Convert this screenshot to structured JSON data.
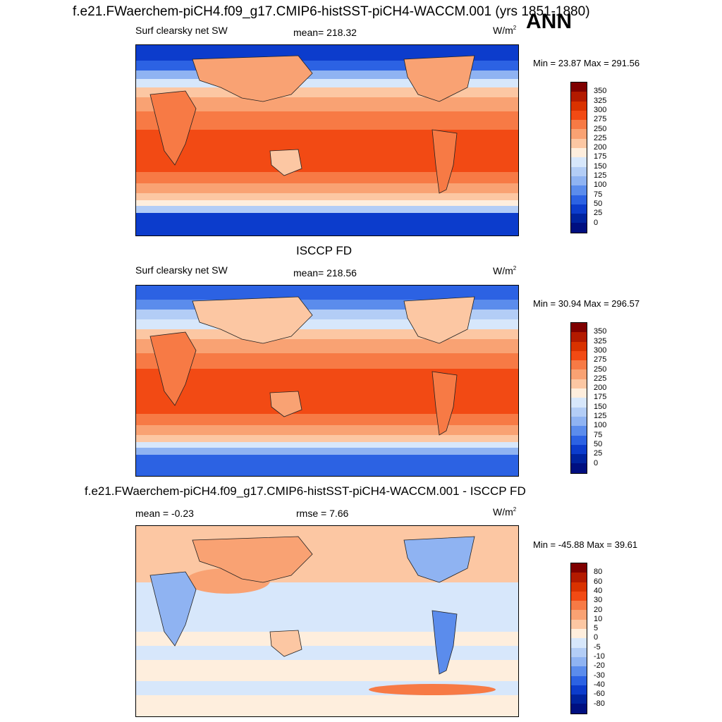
{
  "header": {
    "main_title": "f.e21.FWaerchem-piCH4.f09_g17.CMIP6-histSST-piCH4-WACCM.001 (yrs 1851-1880)",
    "season": "ANN"
  },
  "panels": [
    {
      "id": "model",
      "title": "",
      "variable": "Surf clearsky net SW",
      "stat": "mean= 218.32",
      "units_base": "W/m",
      "units_sup": "2",
      "minmax": "Min =  23.87 Max = 291.56",
      "colorbar_labels": [
        "350",
        "325",
        "300",
        "275",
        "250",
        "225",
        "200",
        "175",
        "150",
        "125",
        "100",
        "75",
        "50",
        "25",
        "0"
      ]
    },
    {
      "id": "obs",
      "title": "ISCCP FD",
      "variable": "Surf clearsky net SW",
      "stat": "mean= 218.56",
      "units_base": "W/m",
      "units_sup": "2",
      "minmax": "Min =  30.94 Max = 296.57",
      "colorbar_labels": [
        "350",
        "325",
        "300",
        "275",
        "250",
        "225",
        "200",
        "175",
        "150",
        "125",
        "100",
        "75",
        "50",
        "25",
        "0"
      ]
    },
    {
      "id": "diff",
      "title": "f.e21.FWaerchem-piCH4.f09_g17.CMIP6-histSST-piCH4-WACCM.001 - ISCCP FD",
      "variable": "mean =  -0.23",
      "stat": "rmse =   7.66",
      "units_base": "W/m",
      "units_sup": "2",
      "minmax": "Min = -45.88 Max =  39.61",
      "colorbar_labels": [
        "80",
        "60",
        "40",
        "30",
        "20",
        "10",
        "5",
        "0",
        "-5",
        "-10",
        "-20",
        "-30",
        "-40",
        "-60",
        "-80"
      ]
    }
  ],
  "colors": {
    "sequential": [
      "#7f0000",
      "#b31a00",
      "#d93200",
      "#f24a14",
      "#f77a45",
      "#f9a273",
      "#fcc7a3",
      "#feeedd",
      "#d7e7fb",
      "#b3cdf6",
      "#8fb3f2",
      "#5b8cec",
      "#2c62e3",
      "#0c3ccc",
      "#00239f",
      "#000f80"
    ],
    "diverging": [
      "#7f0000",
      "#b31a00",
      "#d93200",
      "#f24a14",
      "#f77a45",
      "#f9a273",
      "#fcc7a3",
      "#feeedd",
      "#d7e7fb",
      "#b3cdf6",
      "#8fb3f2",
      "#5b8cec",
      "#2c62e3",
      "#0c3ccc",
      "#00239f",
      "#000f80"
    ]
  }
}
